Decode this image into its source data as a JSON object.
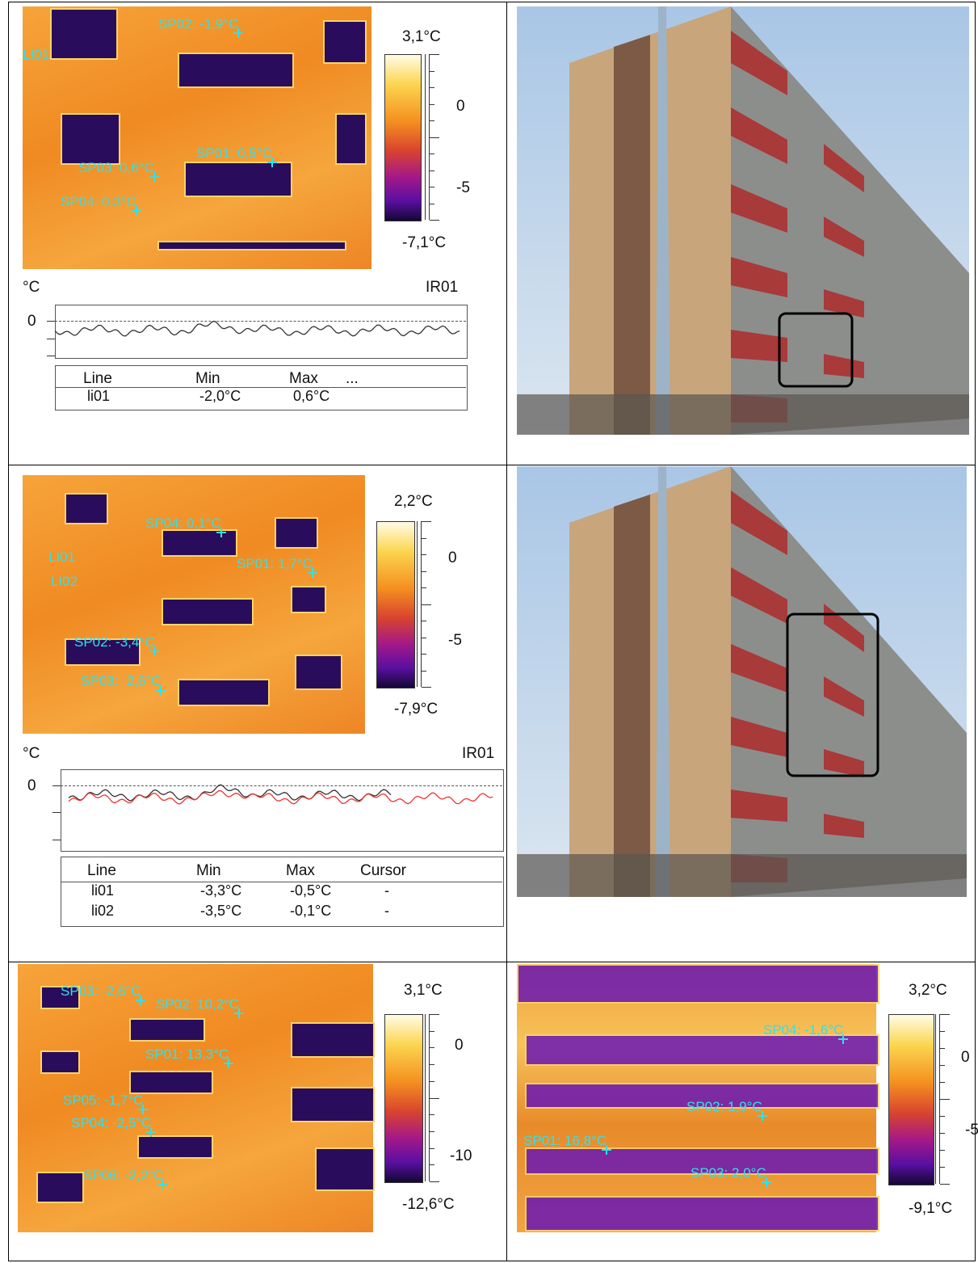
{
  "panels": [
    {
      "scale": {
        "max": "3,1°C",
        "min": "-7,1°C",
        "ticks": [
          "0",
          "-5"
        ]
      },
      "labels": [
        "SP02: -1,9°C",
        "LI01",
        "SP01: 0,5°C",
        "SP03: 0,6°C",
        "SP04: 0,3°C"
      ],
      "graph": {
        "unit": "°C",
        "id": "IR01",
        "tick": "0"
      },
      "table": {
        "header": [
          "Line",
          "Min",
          "Max",
          "..."
        ],
        "rows": [
          [
            "li01",
            "-2,0°C",
            "0,6°C"
          ]
        ]
      }
    },
    {
      "scale": {
        "max": "2,2°C",
        "min": "-7,9°C",
        "ticks": [
          "0",
          "-5"
        ]
      },
      "labels": [
        "SP04: 0,1°C",
        "LI01",
        "LI02",
        "SP01: 1,7°C",
        "SP02: -3,4°C",
        "SP03: -2,6°C"
      ],
      "graph": {
        "unit": "°C",
        "id": "IR01",
        "tick": "0"
      },
      "table": {
        "header": [
          "Line",
          "Min",
          "Max",
          "Cursor"
        ],
        "rows": [
          [
            "li01",
            "-3,3°C",
            "-0,5°C",
            "-"
          ],
          [
            "li02",
            "-3,5°C",
            "-0,1°C",
            "-"
          ]
        ]
      }
    },
    {
      "scale": {
        "max": "3,1°C",
        "min": "-12,6°C",
        "ticks": [
          "0",
          "-10"
        ]
      },
      "labels": [
        "SP03: -2,6°C",
        "SP02: 10,2°C",
        "SP01: 13,3°C",
        "SP05: -1,7°C",
        "SP04: -2,5°C",
        "SP06: -2,2°C"
      ]
    },
    {
      "scale": {
        "max": "3,2°C",
        "min": "-9,1°C",
        "ticks": [
          "0",
          "-5"
        ]
      },
      "labels": [
        "SP04: -1,6°C",
        "SP02: 1,9°C",
        "SP01: 16,8°C",
        "SP03: 2,0°C"
      ]
    }
  ]
}
